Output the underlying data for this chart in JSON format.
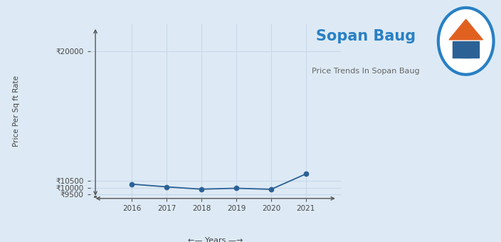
{
  "title": "Sopan Baug",
  "subtitle": "Price Trends In Sopan Baug",
  "xlabel": "←— Years —→",
  "ylabel": "Price Per Sq ft Rate",
  "years": [
    2016,
    2017,
    2018,
    2019,
    2020,
    2021
  ],
  "values": [
    10250,
    10050,
    9880,
    9950,
    9870,
    11000
  ],
  "yticks": [
    9500,
    10000,
    10500,
    20000
  ],
  "ylim_bottom": 9200,
  "ylim_top": 22000,
  "xlim_left": 2014.8,
  "xlim_right": 2022.0,
  "line_color": "#2c6196",
  "marker_color": "#2c6196",
  "bg_color": "#ddeaf5",
  "grid_color": "#c8d8e8",
  "title_color": "#2980c4",
  "subtitle_color": "#666666",
  "axis_color": "#555555",
  "tick_color": "#444444"
}
